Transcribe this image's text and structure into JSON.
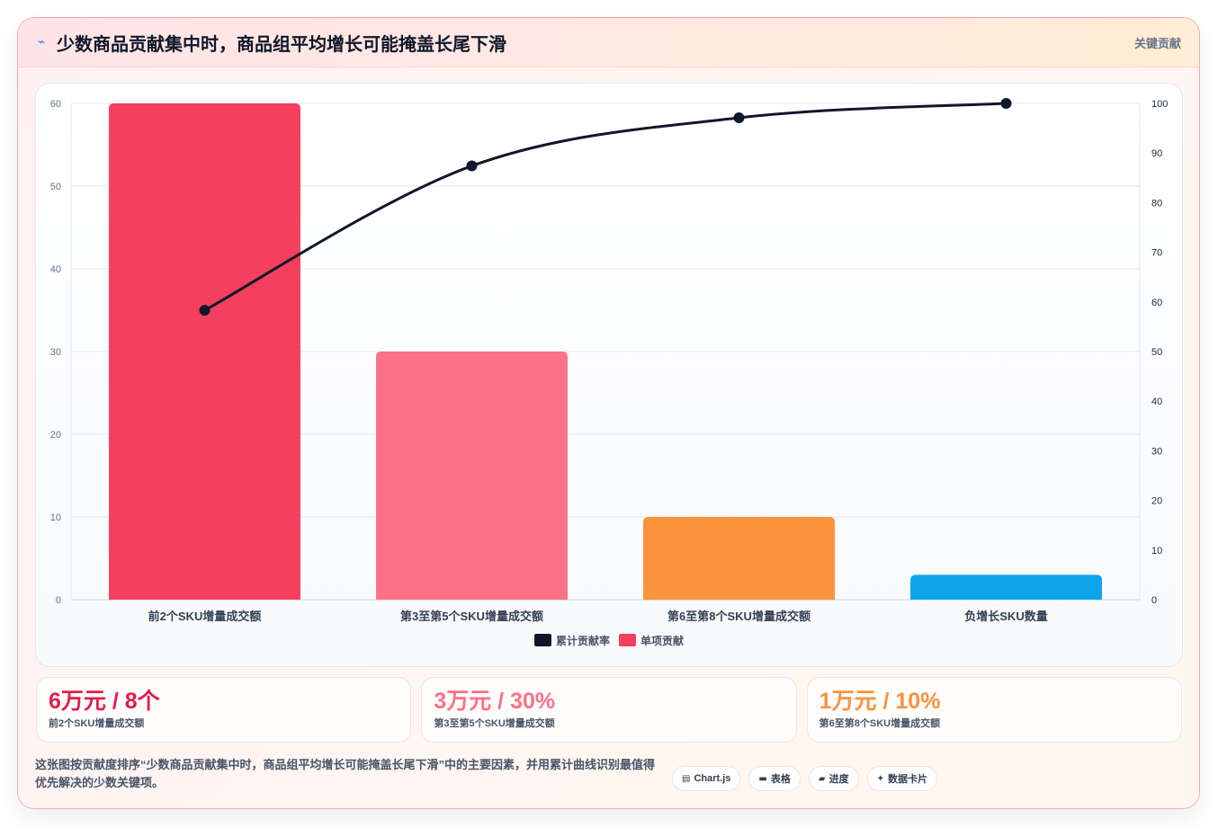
{
  "header": {
    "icon": "lightning-icon",
    "title": "少数商品贡献集中时，商品组平均增长可能掩盖长尾下滑",
    "badge": "关键贡献"
  },
  "chart_data": {
    "type": "bar",
    "categories": [
      "前2个SKU增量成交额",
      "第3至第5个SKU增量成交额",
      "第6至第8个SKU增量成交额",
      "负增长SKU数量"
    ],
    "series": [
      {
        "name": "单项贡献",
        "type": "bar",
        "values": [
          60,
          30,
          10,
          3
        ],
        "color": "#f43f5e",
        "bar_colors": [
          "#f43f5e",
          "#fb7185",
          "#fb923c",
          "#0ea5e9"
        ]
      },
      {
        "name": "累计贡献率",
        "type": "line",
        "values": [
          58.3,
          87.4,
          97.1,
          100
        ],
        "color": "#0f172a"
      }
    ],
    "ylim": [
      0,
      60
    ],
    "y_ticks": [
      0,
      10,
      20,
      30,
      40,
      50,
      60
    ],
    "y2lim": [
      0,
      100
    ],
    "y2_ticks": [
      0,
      10,
      20,
      30,
      40,
      50,
      60,
      70,
      80,
      90,
      100
    ],
    "legend_position": "bottom",
    "grid": true
  },
  "cards": [
    {
      "value": "6万元 / 8个",
      "label": "前2个SKU增量成交额",
      "color": "#e11d48"
    },
    {
      "value": "3万元 / 30%",
      "label": "第3至第5个SKU增量成交额",
      "color": "#fb7185"
    },
    {
      "value": "1万元 / 10%",
      "label": "第6至第8个SKU增量成交额",
      "color": "#fb923c"
    }
  ],
  "footer": {
    "description": "这张图按贡献度排序“少数商品贡献集中时，商品组平均增长可能掩盖长尾下滑”中的主要因素，并用累计曲线识别最值得优先解决的少数关键项。",
    "pills": [
      {
        "icon": "chart-icon",
        "label": "Chart.js"
      },
      {
        "icon": "table-icon",
        "label": "表格"
      },
      {
        "icon": "progress-icon",
        "label": "进度"
      },
      {
        "icon": "sparkle-icon",
        "label": "数据卡片"
      }
    ]
  }
}
